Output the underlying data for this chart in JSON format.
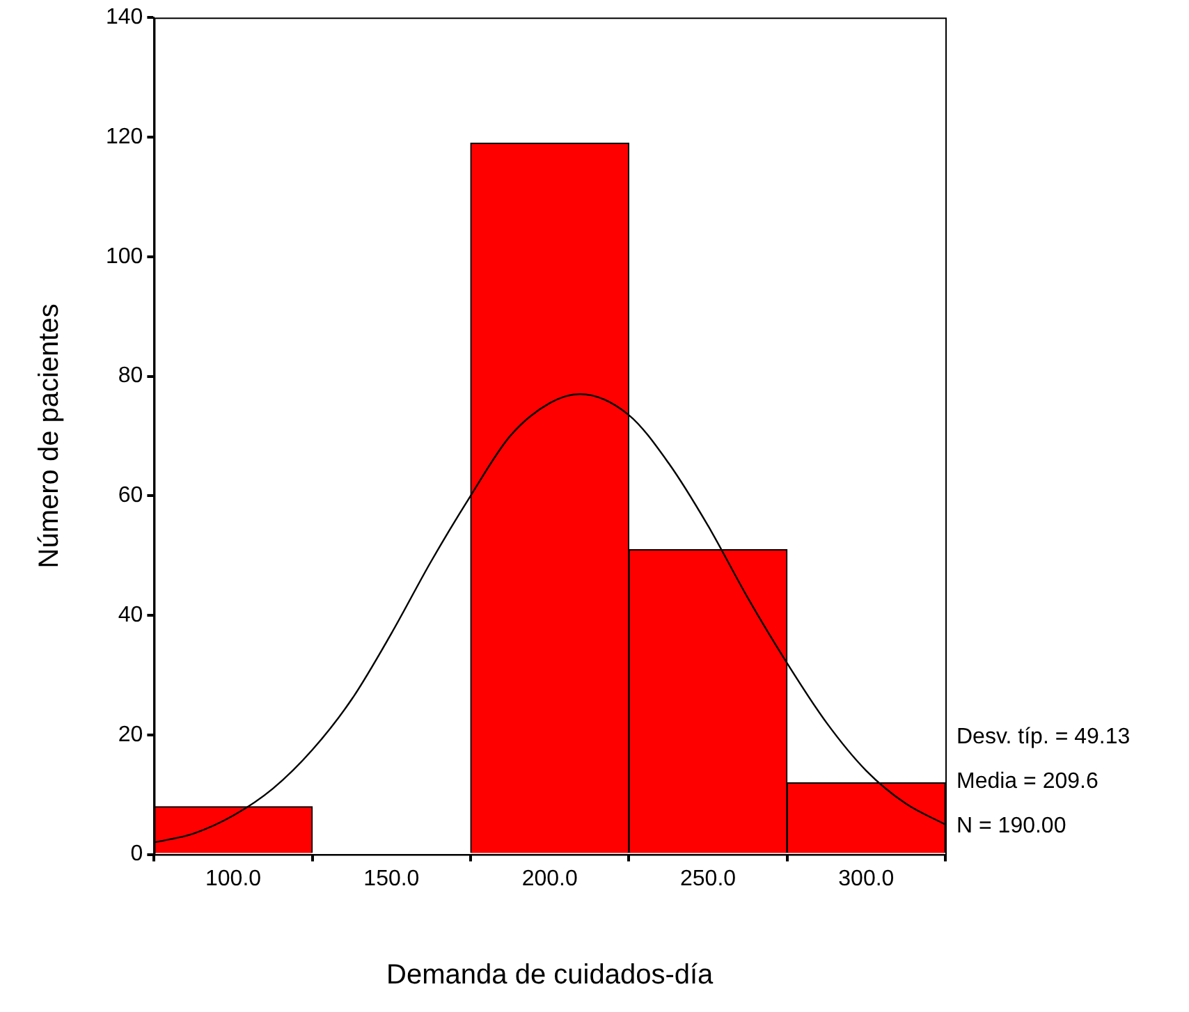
{
  "chart_data": {
    "type": "histogram",
    "xlabel": "Demanda de cuidados-día",
    "ylabel": "Número de pacientes",
    "bins": [
      75,
      125,
      175,
      225,
      275,
      325
    ],
    "values": [
      8,
      0,
      119,
      51,
      12
    ],
    "color": "#ff0000",
    "series": [
      {
        "type": "line",
        "color": "#000000",
        "x": [
          75,
          87.5,
          100,
          112.5,
          125,
          137.5,
          150,
          162.5,
          175,
          187.5,
          200,
          209.6,
          225,
          237.5,
          250,
          262.5,
          275,
          287.5,
          300,
          312.5,
          325
        ],
        "values": [
          2,
          3.5,
          6.5,
          11,
          17.5,
          26,
          37,
          49,
          60,
          70,
          75.5,
          77,
          73.5,
          65.5,
          55,
          43,
          32,
          22,
          14,
          8.5,
          5
        ]
      }
    ],
    "xlim": [
      75,
      325
    ],
    "xticks": [
      {
        "value": 100,
        "label": "100.0"
      },
      {
        "value": 150,
        "label": "150.0"
      },
      {
        "value": 200,
        "label": "200.0"
      },
      {
        "value": 250,
        "label": "250.0"
      },
      {
        "value": 300,
        "label": "300.0"
      }
    ],
    "ylim": [
      0,
      140
    ],
    "yticks": [
      0,
      20,
      40,
      60,
      80,
      100,
      120,
      140
    ],
    "grid": false,
    "legend": false,
    "marker": "none",
    "line_style": "solid",
    "annotations": [
      "Desv. típ. = 49.13",
      "Media = 209.6",
      "N = 190.00"
    ]
  }
}
